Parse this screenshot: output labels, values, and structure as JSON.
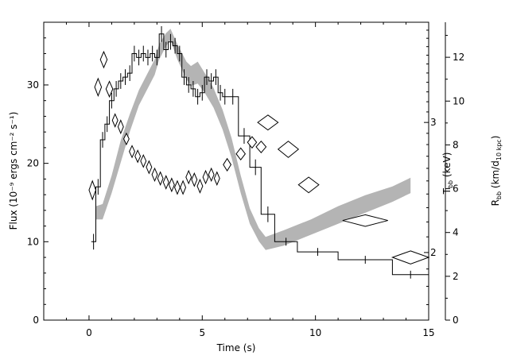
{
  "chart_data": {
    "type": "line",
    "title": "",
    "xlabel": "Time (s)",
    "ylabel": "Flux (10⁻⁹ ergs cm⁻² s⁻¹)",
    "xlim": [
      -2,
      15
    ],
    "ylim": [
      0,
      38
    ],
    "x_ticks": [
      0,
      5,
      10,
      15
    ],
    "y_ticks": [
      0,
      10,
      20,
      30
    ],
    "grid": false,
    "legend": "none",
    "right_axes": [
      {
        "name": "tbb",
        "label": "T",
        "label_sub": "bb",
        "label_unit": " (keV)",
        "scale": "log",
        "ticks": [
          2,
          3
        ],
        "data_range": [
          1.62,
          4.1
        ]
      },
      {
        "name": "rbb",
        "label": "R",
        "label_sub": "bb",
        "label_unit_pre": " (km/d",
        "label_unit_sub": "10 kpc",
        "label_unit_post": ")",
        "ticks": [
          0,
          2,
          4,
          6,
          8,
          10,
          12
        ],
        "data_range": [
          0,
          13.6
        ]
      }
    ],
    "series": [
      {
        "kind": "flux_histogram",
        "axis": "flux",
        "color": "#000000",
        "bins": [
          {
            "x0": 0.1,
            "x1": 0.3,
            "y": 10,
            "err": 1
          },
          {
            "x0": 0.3,
            "x1": 0.5,
            "y": 17,
            "err": 1
          },
          {
            "x0": 0.5,
            "x1": 0.7,
            "y": 23,
            "err": 1
          },
          {
            "x0": 0.7,
            "x1": 0.9,
            "y": 25,
            "err": 1
          },
          {
            "x0": 0.9,
            "x1": 1.1,
            "y": 28,
            "err": 1
          },
          {
            "x0": 1.1,
            "x1": 1.3,
            "y": 29.5,
            "err": 1
          },
          {
            "x0": 1.3,
            "x1": 1.5,
            "y": 30.5,
            "err": 1
          },
          {
            "x0": 1.5,
            "x1": 1.7,
            "y": 31,
            "err": 1
          },
          {
            "x0": 1.7,
            "x1": 1.9,
            "y": 31.5,
            "err": 1
          },
          {
            "x0": 1.9,
            "x1": 2.1,
            "y": 34,
            "err": 1
          },
          {
            "x0": 2.1,
            "x1": 2.3,
            "y": 33.5,
            "err": 1
          },
          {
            "x0": 2.3,
            "x1": 2.5,
            "y": 34,
            "err": 1
          },
          {
            "x0": 2.5,
            "x1": 2.7,
            "y": 33.5,
            "err": 1
          },
          {
            "x0": 2.7,
            "x1": 2.9,
            "y": 34,
            "err": 1
          },
          {
            "x0": 2.9,
            "x1": 3.1,
            "y": 33.5,
            "err": 1
          },
          {
            "x0": 3.1,
            "x1": 3.3,
            "y": 36.5,
            "err": 1
          },
          {
            "x0": 3.3,
            "x1": 3.5,
            "y": 34.5,
            "err": 1
          },
          {
            "x0": 3.5,
            "x1": 3.7,
            "y": 35.5,
            "err": 1
          },
          {
            "x0": 3.7,
            "x1": 3.9,
            "y": 35,
            "err": 1
          },
          {
            "x0": 3.9,
            "x1": 4.1,
            "y": 34,
            "err": 1
          },
          {
            "x0": 4.1,
            "x1": 4.3,
            "y": 31,
            "err": 1
          },
          {
            "x0": 4.3,
            "x1": 4.5,
            "y": 30,
            "err": 1
          },
          {
            "x0": 4.5,
            "x1": 4.7,
            "y": 29.5,
            "err": 1
          },
          {
            "x0": 4.7,
            "x1": 4.9,
            "y": 28.5,
            "err": 1
          },
          {
            "x0": 4.9,
            "x1": 5.1,
            "y": 29,
            "err": 1
          },
          {
            "x0": 5.1,
            "x1": 5.3,
            "y": 31,
            "err": 1
          },
          {
            "x0": 5.3,
            "x1": 5.5,
            "y": 30.5,
            "err": 1
          },
          {
            "x0": 5.5,
            "x1": 5.7,
            "y": 31,
            "err": 1
          },
          {
            "x0": 5.7,
            "x1": 5.9,
            "y": 29,
            "err": 1
          },
          {
            "x0": 5.9,
            "x1": 6.1,
            "y": 28.5,
            "err": 1
          },
          {
            "x0": 6.1,
            "x1": 6.6,
            "y": 28.5,
            "err": 1
          },
          {
            "x0": 6.6,
            "x1": 7.1,
            "y": 23.5,
            "err": 1
          },
          {
            "x0": 7.1,
            "x1": 7.6,
            "y": 19.5,
            "err": 1
          },
          {
            "x0": 7.6,
            "x1": 8.2,
            "y": 13.5,
            "err": 1
          },
          {
            "x0": 8.2,
            "x1": 9.2,
            "y": 10,
            "err": 0.5
          },
          {
            "x0": 9.2,
            "x1": 11.0,
            "y": 8.7,
            "err": 0.5
          },
          {
            "x0": 11.0,
            "x1": 13.4,
            "y": 7.7,
            "err": 0.5
          },
          {
            "x0": 13.4,
            "x1": 15.0,
            "y": 5.8,
            "err": 0.5
          }
        ]
      },
      {
        "kind": "band",
        "axis": "rbb",
        "color": "#b4b4b4",
        "x": [
          0.3,
          0.6,
          1.0,
          1.4,
          1.8,
          2.2,
          2.6,
          2.9,
          3.1,
          3.4,
          3.6,
          3.9,
          4.3,
          4.5,
          4.8,
          5.1,
          5.5,
          5.9,
          6.3,
          6.7,
          7.1,
          7.5,
          7.8,
          8.6,
          9.8,
          11.0,
          12.2,
          13.4,
          14.2
        ],
        "y_low": [
          4.6,
          4.6,
          5.8,
          7.2,
          8.6,
          9.8,
          10.6,
          11.2,
          11.9,
          12.5,
          12.8,
          11.9,
          11.0,
          10.7,
          10.8,
          10.4,
          9.7,
          8.7,
          7.4,
          5.8,
          4.4,
          3.6,
          3.2,
          3.4,
          3.9,
          4.4,
          4.9,
          5.4,
          5.8
        ],
        "y_high": [
          5.2,
          5.3,
          6.6,
          8.2,
          9.4,
          10.5,
          11.3,
          11.9,
          12.6,
          13.1,
          13.3,
          12.6,
          11.8,
          11.6,
          11.8,
          11.3,
          10.6,
          9.6,
          8.3,
          6.6,
          5.1,
          4.2,
          3.8,
          4.1,
          4.6,
          5.2,
          5.7,
          6.1,
          6.5
        ]
      },
      {
        "kind": "diamonds",
        "axis": "tbb",
        "color": "#000000",
        "points": [
          {
            "x": 0.15,
            "y": 2.43,
            "dx": 0.15,
            "dy": 0.07
          },
          {
            "x": 0.4,
            "y": 3.35,
            "dx": 0.15,
            "dy": 0.09
          },
          {
            "x": 0.65,
            "y": 3.65,
            "dx": 0.15,
            "dy": 0.09
          },
          {
            "x": 0.9,
            "y": 3.33,
            "dx": 0.15,
            "dy": 0.08
          },
          {
            "x": 1.15,
            "y": 3.02,
            "dx": 0.12,
            "dy": 0.06
          },
          {
            "x": 1.4,
            "y": 2.96,
            "dx": 0.12,
            "dy": 0.06
          },
          {
            "x": 1.65,
            "y": 2.85,
            "dx": 0.12,
            "dy": 0.05
          },
          {
            "x": 1.9,
            "y": 2.74,
            "dx": 0.12,
            "dy": 0.05
          },
          {
            "x": 2.15,
            "y": 2.7,
            "dx": 0.12,
            "dy": 0.05
          },
          {
            "x": 2.4,
            "y": 2.66,
            "dx": 0.12,
            "dy": 0.05
          },
          {
            "x": 2.65,
            "y": 2.61,
            "dx": 0.12,
            "dy": 0.05
          },
          {
            "x": 2.9,
            "y": 2.55,
            "dx": 0.12,
            "dy": 0.05
          },
          {
            "x": 3.15,
            "y": 2.52,
            "dx": 0.12,
            "dy": 0.05
          },
          {
            "x": 3.4,
            "y": 2.49,
            "dx": 0.12,
            "dy": 0.05
          },
          {
            "x": 3.65,
            "y": 2.47,
            "dx": 0.12,
            "dy": 0.05
          },
          {
            "x": 3.9,
            "y": 2.45,
            "dx": 0.12,
            "dy": 0.05
          },
          {
            "x": 4.15,
            "y": 2.45,
            "dx": 0.12,
            "dy": 0.05
          },
          {
            "x": 4.4,
            "y": 2.53,
            "dx": 0.12,
            "dy": 0.05
          },
          {
            "x": 4.65,
            "y": 2.51,
            "dx": 0.12,
            "dy": 0.05
          },
          {
            "x": 4.9,
            "y": 2.46,
            "dx": 0.12,
            "dy": 0.05
          },
          {
            "x": 5.15,
            "y": 2.53,
            "dx": 0.12,
            "dy": 0.05
          },
          {
            "x": 5.4,
            "y": 2.55,
            "dx": 0.12,
            "dy": 0.05
          },
          {
            "x": 5.65,
            "y": 2.52,
            "dx": 0.12,
            "dy": 0.05
          },
          {
            "x": 6.1,
            "y": 2.63,
            "dx": 0.17,
            "dy": 0.05
          },
          {
            "x": 6.7,
            "y": 2.72,
            "dx": 0.2,
            "dy": 0.05
          },
          {
            "x": 7.2,
            "y": 2.82,
            "dx": 0.2,
            "dy": 0.05
          },
          {
            "x": 7.6,
            "y": 2.78,
            "dx": 0.22,
            "dy": 0.05
          },
          {
            "x": 7.9,
            "y": 3.0,
            "dx": 0.45,
            "dy": 0.07
          },
          {
            "x": 8.8,
            "y": 2.76,
            "dx": 0.45,
            "dy": 0.07
          },
          {
            "x": 9.7,
            "y": 2.47,
            "dx": 0.45,
            "dy": 0.06
          },
          {
            "x": 12.2,
            "y": 2.21,
            "dx": 1.0,
            "dy": 0.04
          },
          {
            "x": 14.2,
            "y": 1.97,
            "dx": 0.8,
            "dy": 0.04
          }
        ]
      }
    ]
  }
}
